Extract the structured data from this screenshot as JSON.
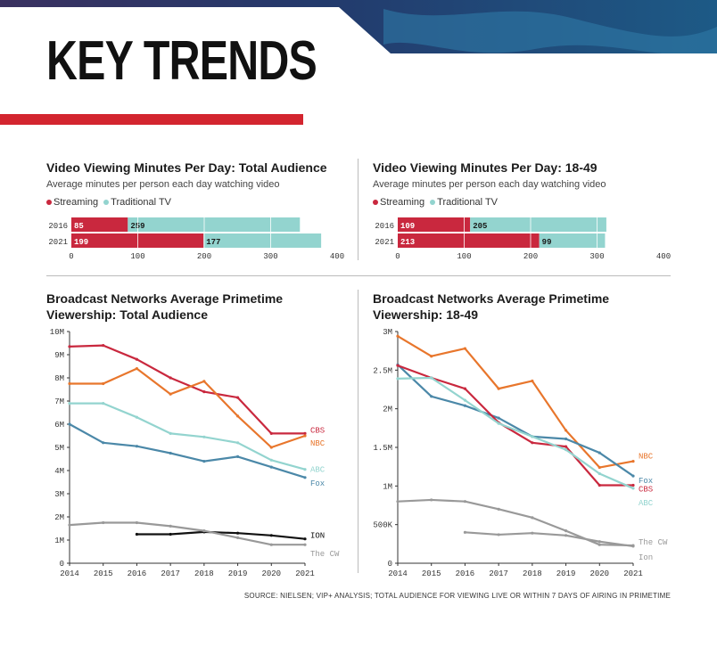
{
  "page": {
    "title": "KEY TRENDS",
    "source": "SOURCE: NIELSEN; VIP+ ANALYSIS; TOTAL AUDIENCE FOR VIEWING LIVE OR WITHIN 7 DAYS OF AIRING IN PRIMETIME"
  },
  "colors": {
    "accent_red": "#d3252f",
    "streaming": "#c9283e",
    "traditional": "#93d4cf",
    "CBS": "#c9283e",
    "NBC": "#e8762c",
    "ABC": "#93d4cf",
    "Fox": "#4b88a8",
    "ION": "#111111",
    "The CW": "#999999"
  },
  "legend": {
    "streaming": "Streaming",
    "traditional": "Traditional TV"
  },
  "chart_data": [
    {
      "type": "bar",
      "stacked": true,
      "orientation": "horizontal",
      "title": "Video Viewing Minutes Per Day: Total Audience",
      "subtitle": "Average minutes per person each day watching video",
      "categories": [
        "2016",
        "2021"
      ],
      "series": [
        {
          "name": "Streaming",
          "values": [
            85,
            199
          ]
        },
        {
          "name": "Traditional TV",
          "values": [
            259,
            177
          ]
        }
      ],
      "xlim": [
        0,
        400
      ],
      "xticks": [
        "0",
        "100",
        "200",
        "300",
        "400"
      ],
      "grid": true
    },
    {
      "type": "bar",
      "stacked": true,
      "orientation": "horizontal",
      "title": "Video Viewing Minutes Per Day: 18-49",
      "subtitle": "Average minutes per person each day watching video",
      "categories": [
        "2016",
        "2021"
      ],
      "series": [
        {
          "name": "Streaming",
          "values": [
            109,
            213
          ]
        },
        {
          "name": "Traditional TV",
          "values": [
            205,
            99
          ]
        }
      ],
      "xlim": [
        0,
        400
      ],
      "xticks": [
        "0",
        "100",
        "200",
        "300",
        "400"
      ],
      "grid": true
    },
    {
      "type": "line",
      "title": "Broadcast Networks Average Primetime Viewership: Total Audience",
      "x": [
        "2014",
        "2015",
        "2016",
        "2017",
        "2018",
        "2019",
        "2020",
        "2021"
      ],
      "ylim": [
        0,
        10000000
      ],
      "yticks": [
        {
          "v": 0,
          "label": "0"
        },
        {
          "v": 1000000,
          "label": "1M"
        },
        {
          "v": 2000000,
          "label": "2M"
        },
        {
          "v": 3000000,
          "label": "3M"
        },
        {
          "v": 4000000,
          "label": "4M"
        },
        {
          "v": 5000000,
          "label": "5M"
        },
        {
          "v": 6000000,
          "label": "6M"
        },
        {
          "v": 7000000,
          "label": "7M"
        },
        {
          "v": 8000000,
          "label": "8M"
        },
        {
          "v": 9000000,
          "label": "9M"
        },
        {
          "v": 10000000,
          "label": "10M"
        }
      ],
      "series": [
        {
          "name": "CBS",
          "values": [
            9350000,
            9400000,
            8800000,
            8000000,
            7400000,
            7150000,
            5600000,
            5600000
          ]
        },
        {
          "name": "NBC",
          "values": [
            7750000,
            7750000,
            8400000,
            7300000,
            7850000,
            6350000,
            5000000,
            5500000
          ]
        },
        {
          "name": "ABC",
          "values": [
            6900000,
            6900000,
            6300000,
            5600000,
            5450000,
            5200000,
            4450000,
            4050000
          ]
        },
        {
          "name": "Fox",
          "values": [
            6000000,
            5200000,
            5050000,
            4750000,
            4400000,
            4600000,
            4150000,
            3700000
          ]
        },
        {
          "name": "ION",
          "values": [
            null,
            null,
            1250000,
            1250000,
            1350000,
            1300000,
            1200000,
            1050000
          ]
        },
        {
          "name": "The CW",
          "values": [
            1650000,
            1750000,
            1750000,
            1600000,
            1400000,
            1100000,
            800000,
            800000
          ]
        }
      ]
    },
    {
      "type": "line",
      "title": "Broadcast Networks Average Primetime Viewership: 18-49",
      "x": [
        "2014",
        "2015",
        "2016",
        "2017",
        "2018",
        "2019",
        "2020",
        "2021"
      ],
      "ylim": [
        0,
        3000000
      ],
      "yticks": [
        {
          "v": 0,
          "label": "0"
        },
        {
          "v": 500000,
          "label": "500K"
        },
        {
          "v": 1000000,
          "label": "1M"
        },
        {
          "v": 1500000,
          "label": "1.5M"
        },
        {
          "v": 2000000,
          "label": "2M"
        },
        {
          "v": 2500000,
          "label": "2.5M"
        },
        {
          "v": 3000000,
          "label": "3M"
        }
      ],
      "series": [
        {
          "name": "NBC",
          "values": [
            2940000,
            2680000,
            2780000,
            2260000,
            2360000,
            1720000,
            1240000,
            1320000
          ]
        },
        {
          "name": "Fox",
          "values": [
            2570000,
            2160000,
            2040000,
            1880000,
            1640000,
            1610000,
            1430000,
            1130000
          ]
        },
        {
          "name": "CBS",
          "values": [
            2560000,
            2400000,
            2260000,
            1820000,
            1560000,
            1510000,
            1010000,
            1010000
          ]
        },
        {
          "name": "ABC",
          "values": [
            2390000,
            2400000,
            2110000,
            1810000,
            1640000,
            1470000,
            1160000,
            970000
          ]
        },
        {
          "name": "The CW",
          "values": [
            800000,
            820000,
            800000,
            700000,
            590000,
            420000,
            240000,
            230000
          ]
        },
        {
          "name": "Ion",
          "values": [
            null,
            null,
            400000,
            370000,
            390000,
            360000,
            280000,
            220000
          ]
        }
      ]
    }
  ]
}
